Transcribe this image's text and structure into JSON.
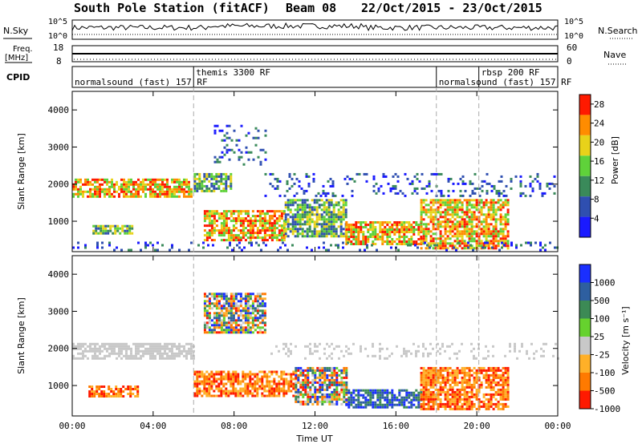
{
  "header": {
    "station": "South Pole Station (fitACF)",
    "beam": "Beam 08",
    "dates": "22/Oct/2015 - 23/Oct/2015"
  },
  "top_panels": {
    "nsky_label": "N.Sky",
    "nsearch_label": "N.Search",
    "noise_axis_left": [
      "10^5",
      "10^0"
    ],
    "noise_axis_right": [
      "10^5",
      "10^0"
    ],
    "freq_label_line1": "Freq.",
    "freq_label_line2": "[MHz]",
    "freq_ticks": [
      "18",
      "8"
    ],
    "nave_label": "Nave",
    "nave_ticks": [
      "60",
      "0"
    ],
    "cpid_label": "CPID",
    "cpid_segments": [
      {
        "label": "normalsound (fast) 157 RF",
        "start_h": 0,
        "row": 1
      },
      {
        "label": "themis 3300 RF",
        "start_h": 6,
        "row": 0
      },
      {
        "label": "normalsound (fast) 157 RF",
        "start_h": 18,
        "row": 1
      },
      {
        "label": "rbsp 200 RF",
        "start_h": 20.1,
        "row": 0
      }
    ]
  },
  "chart_data": [
    {
      "type": "heatmap",
      "panel": "power",
      "xlabel": "",
      "ylabel": "Slant Range [km]",
      "xlim": [
        0,
        24
      ],
      "ylim": [
        180,
        4500
      ],
      "yticks": [
        "1000",
        "2000",
        "3000",
        "4000"
      ],
      "colorbar_label": "Power [dB]",
      "colorbar_ticks": [
        "4",
        "8",
        "12",
        "16",
        "20",
        "24",
        "28"
      ],
      "colorbar_range": [
        0,
        30
      ],
      "colors": [
        "#1a1aff",
        "#2f4fb0",
        "#3a8a5a",
        "#5fd23a",
        "#e8d21a",
        "#ff8c00",
        "#ff1a00"
      ],
      "echo_regions": [
        {
          "x": [
            0.0,
            5.9
          ],
          "range": [
            1650,
            2150
          ],
          "level": "high"
        },
        {
          "x": [
            6.0,
            7.8
          ],
          "range": [
            1800,
            2300
          ],
          "level": "mid"
        },
        {
          "x": [
            1.0,
            3.0
          ],
          "range": [
            700,
            900
          ],
          "level": "mid"
        },
        {
          "x": [
            6.5,
            10.5
          ],
          "range": [
            500,
            1300
          ],
          "level": "high"
        },
        {
          "x": [
            10.5,
            13.5
          ],
          "range": [
            600,
            1600
          ],
          "level": "mid"
        },
        {
          "x": [
            13.5,
            17.2
          ],
          "range": [
            400,
            1000
          ],
          "level": "high"
        },
        {
          "x": [
            17.2,
            21.5
          ],
          "range": [
            300,
            1600
          ],
          "level": "high"
        },
        {
          "x": [
            0.0,
            24.0
          ],
          "range": [
            200,
            450
          ],
          "level": "low"
        },
        {
          "x": [
            7.0,
            9.5
          ],
          "range": [
            2500,
            3600
          ],
          "level": "low"
        },
        {
          "x": [
            9.5,
            24.0
          ],
          "range": [
            1700,
            2300
          ],
          "level": "low"
        }
      ]
    },
    {
      "type": "heatmap",
      "panel": "velocity",
      "xlabel": "Time UT",
      "ylabel": "Slant Range [km]",
      "xlim": [
        0,
        24
      ],
      "ylim": [
        180,
        4500
      ],
      "xticks": [
        "00:00",
        "04:00",
        "08:00",
        "12:00",
        "16:00",
        "20:00",
        "00:00"
      ],
      "yticks": [
        "1000",
        "2000",
        "3000",
        "4000"
      ],
      "colorbar_label": "Velocity [m s⁻¹]",
      "colorbar_ticks": [
        "1000",
        "500",
        "100",
        "25",
        "-25",
        "-100",
        "-500",
        "-1000"
      ],
      "colors": [
        "#1a2fff",
        "#2e5fa0",
        "#3c8a55",
        "#66d22e",
        "#c8c8c8",
        "#ffb028",
        "#ff7a00",
        "#ff1a00"
      ],
      "echo_regions": [
        {
          "x": [
            0.0,
            6.0
          ],
          "range": [
            1750,
            2150
          ],
          "class": "ground"
        },
        {
          "x": [
            9.8,
            24.0
          ],
          "range": [
            1750,
            2150
          ],
          "class": "ground-sparse"
        },
        {
          "x": [
            0.8,
            3.2
          ],
          "range": [
            700,
            1000
          ],
          "class": "away"
        },
        {
          "x": [
            6.0,
            11.0
          ],
          "range": [
            700,
            1400
          ],
          "class": "away"
        },
        {
          "x": [
            11.0,
            13.5
          ],
          "range": [
            500,
            1500
          ],
          "class": "mixed"
        },
        {
          "x": [
            13.5,
            17.2
          ],
          "range": [
            400,
            900
          ],
          "class": "toward"
        },
        {
          "x": [
            17.2,
            21.5
          ],
          "range": [
            350,
            1500
          ],
          "class": "away"
        },
        {
          "x": [
            6.5,
            9.5
          ],
          "range": [
            2400,
            3500
          ],
          "class": "mixed"
        }
      ]
    }
  ],
  "vertical_markers_h": [
    6,
    18,
    20.1
  ]
}
